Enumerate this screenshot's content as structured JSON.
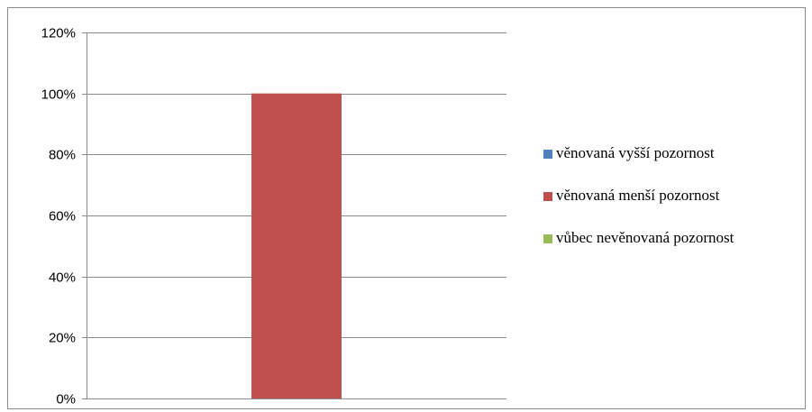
{
  "chart_data": {
    "type": "bar",
    "categories": [
      ""
    ],
    "series": [
      {
        "name": "věnovaná vyšší pozornost",
        "values": [
          0
        ],
        "color": "#4F81BD"
      },
      {
        "name": "věnovaná menší pozornost",
        "values": [
          100
        ],
        "color": "#C0504D"
      },
      {
        "name": "vůbec nevěnovaná pozornost",
        "values": [
          0
        ],
        "color": "#9BBB59"
      }
    ],
    "yticks": [
      "0%",
      "20%",
      "40%",
      "60%",
      "80%",
      "100%",
      "120%"
    ],
    "ylim": [
      0,
      120
    ],
    "unit": "%",
    "grid": true,
    "legend_position": "right",
    "title": "",
    "xlabel": "",
    "ylabel": ""
  }
}
